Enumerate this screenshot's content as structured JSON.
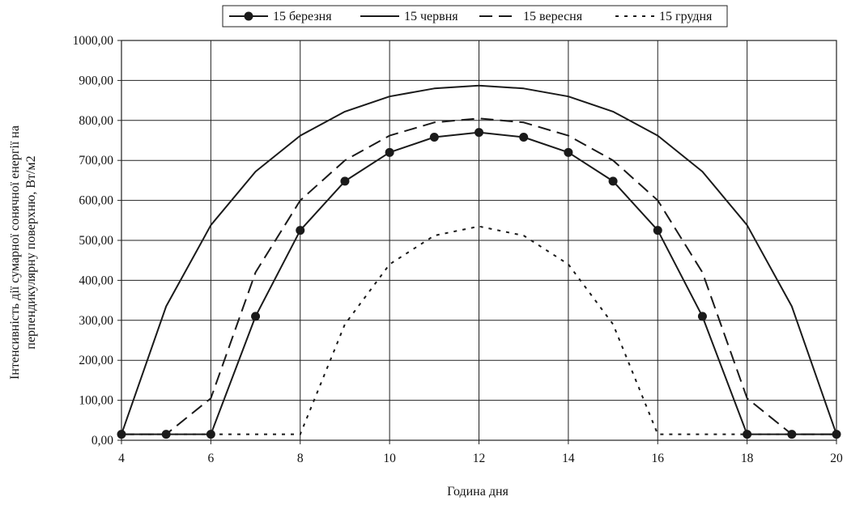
{
  "chart_data": {
    "type": "line",
    "title": "",
    "xlabel": "Година дня",
    "ylabel_line1": "Інтенсивність дії сумарної сонячної енергії на",
    "ylabel_line2": "перпендикулярну поверхню, Вт/м2",
    "xlim": [
      4,
      20
    ],
    "ylim": [
      0,
      1000
    ],
    "x_ticks": [
      "4",
      "6",
      "8",
      "10",
      "12",
      "14",
      "16",
      "18",
      "20"
    ],
    "y_ticks": [
      "0,00",
      "100,00",
      "200,00",
      "300,00",
      "400,00",
      "500,00",
      "600,00",
      "700,00",
      "800,00",
      "900,00",
      "1000,00"
    ],
    "grid": true,
    "legend_position": "top",
    "x": [
      4,
      5,
      6,
      7,
      8,
      9,
      10,
      11,
      12,
      13,
      14,
      15,
      16,
      17,
      18,
      19,
      20
    ],
    "series": [
      {
        "name": "15 березня",
        "style": "solid-markers",
        "color": "#1a1a1a",
        "values": [
          15,
          15,
          15,
          310,
          525,
          648,
          720,
          758,
          770,
          758,
          720,
          648,
          525,
          310,
          15,
          15,
          15
        ]
      },
      {
        "name": "15 червня",
        "style": "solid",
        "color": "#1a1a1a",
        "values": [
          15,
          335,
          538,
          672,
          762,
          822,
          860,
          880,
          887,
          880,
          860,
          822,
          762,
          672,
          538,
          335,
          15
        ]
      },
      {
        "name": "15 вересня",
        "style": "dashed",
        "color": "#1a1a1a",
        "values": [
          15,
          15,
          105,
          420,
          600,
          700,
          762,
          795,
          805,
          795,
          762,
          700,
          600,
          420,
          105,
          15,
          15
        ]
      },
      {
        "name": "15 грудня",
        "style": "dotted",
        "color": "#1a1a1a",
        "values": [
          15,
          15,
          15,
          15,
          15,
          290,
          440,
          512,
          535,
          512,
          440,
          290,
          15,
          15,
          15,
          15,
          15
        ]
      }
    ]
  }
}
